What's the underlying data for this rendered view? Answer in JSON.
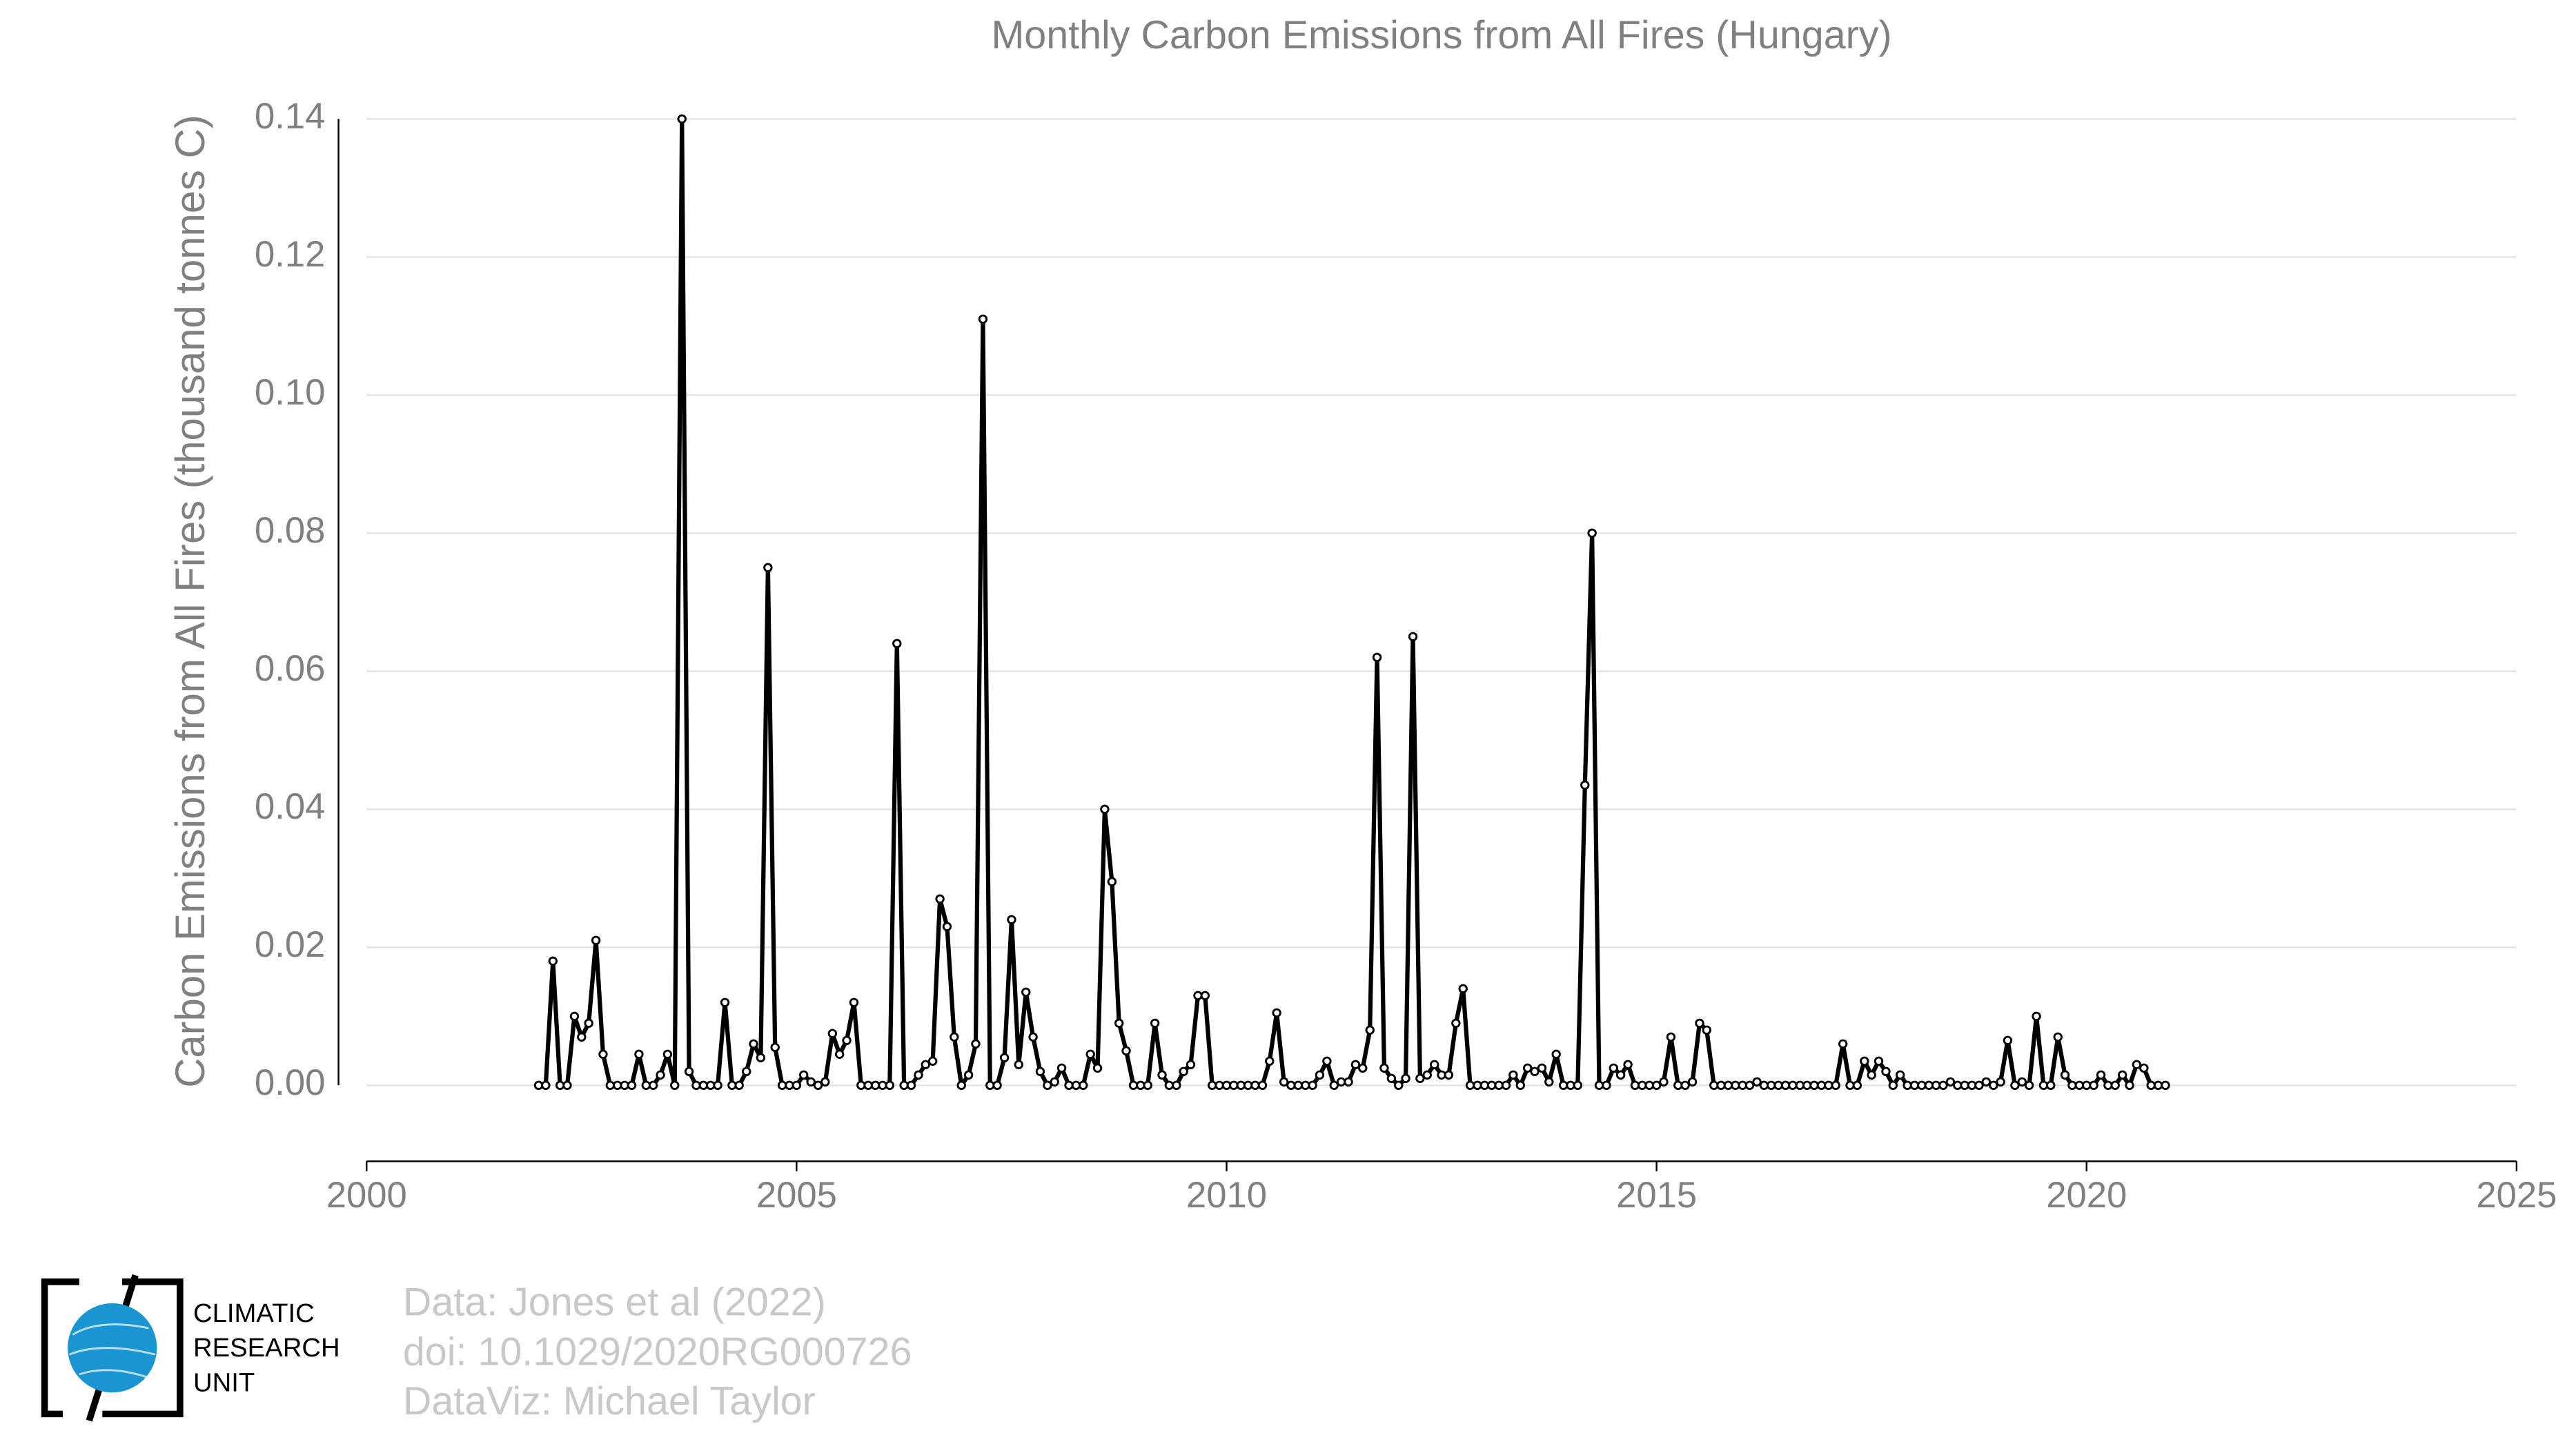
{
  "chart_data": {
    "type": "line",
    "title": "Monthly Carbon Emissions from All Fires (Hungary)",
    "y_label": "Carbon Emissions from All Fires (thousand tonnes C)",
    "source_lines": [
      "Data: Jones et al (2022)",
      "doi: 10.1029/2020RG000726",
      "DataViz: Michael Taylor"
    ],
    "logo_lines": [
      "CLIMATIC",
      "RESEARCH",
      "UNIT"
    ],
    "xlim": [
      2000,
      2025
    ],
    "xticks": [
      2000,
      2005,
      2010,
      2015,
      2020,
      2025
    ],
    "ylim": [
      -0.011,
      0.14
    ],
    "yticks": [
      {
        "value": 0,
        "label": "0.00"
      },
      {
        "value": 0.02,
        "label": "0.02"
      },
      {
        "value": 0.04,
        "label": "0.04"
      },
      {
        "value": 0.06,
        "label": "0.06"
      },
      {
        "value": 0.08,
        "label": "0.08"
      },
      {
        "value": 0.1,
        "label": "0.10"
      },
      {
        "value": 0.12,
        "label": "0.12"
      },
      {
        "value": 0.14,
        "label": "0.14"
      }
    ],
    "grid": true,
    "x": [
      2002.0,
      2002.083,
      2002.167,
      2002.25,
      2002.333,
      2002.417,
      2002.5,
      2002.583,
      2002.667,
      2002.75,
      2002.833,
      2002.917,
      2003.0,
      2003.083,
      2003.167,
      2003.25,
      2003.333,
      2003.417,
      2003.5,
      2003.583,
      2003.667,
      2003.75,
      2003.833,
      2003.917,
      2004.0,
      2004.083,
      2004.167,
      2004.25,
      2004.333,
      2004.417,
      2004.5,
      2004.583,
      2004.667,
      2004.75,
      2004.833,
      2004.917,
      2005.0,
      2005.083,
      2005.167,
      2005.25,
      2005.333,
      2005.417,
      2005.5,
      2005.583,
      2005.667,
      2005.75,
      2005.833,
      2005.917,
      2006.0,
      2006.083,
      2006.167,
      2006.25,
      2006.333,
      2006.417,
      2006.5,
      2006.583,
      2006.667,
      2006.75,
      2006.833,
      2006.917,
      2007.0,
      2007.083,
      2007.167,
      2007.25,
      2007.333,
      2007.417,
      2007.5,
      2007.583,
      2007.667,
      2007.75,
      2007.833,
      2007.917,
      2008.0,
      2008.083,
      2008.167,
      2008.25,
      2008.333,
      2008.417,
      2008.5,
      2008.583,
      2008.667,
      2008.75,
      2008.833,
      2008.917,
      2009.0,
      2009.083,
      2009.167,
      2009.25,
      2009.333,
      2009.417,
      2009.5,
      2009.583,
      2009.667,
      2009.75,
      2009.833,
      2009.917,
      2010.0,
      2010.083,
      2010.167,
      2010.25,
      2010.333,
      2010.417,
      2010.5,
      2010.583,
      2010.667,
      2010.75,
      2010.833,
      2010.917,
      2011.0,
      2011.083,
      2011.167,
      2011.25,
      2011.333,
      2011.417,
      2011.5,
      2011.583,
      2011.667,
      2011.75,
      2011.833,
      2011.917,
      2012.0,
      2012.083,
      2012.167,
      2012.25,
      2012.333,
      2012.417,
      2012.5,
      2012.583,
      2012.667,
      2012.75,
      2012.833,
      2012.917,
      2013.0,
      2013.083,
      2013.167,
      2013.25,
      2013.333,
      2013.417,
      2013.5,
      2013.583,
      2013.667,
      2013.75,
      2013.833,
      2013.917,
      2014.0,
      2014.083,
      2014.167,
      2014.25,
      2014.333,
      2014.417,
      2014.5,
      2014.583,
      2014.667,
      2014.75,
      2014.833,
      2014.917,
      2015.0,
      2015.083,
      2015.167,
      2015.25,
      2015.333,
      2015.417,
      2015.5,
      2015.583,
      2015.667,
      2015.75,
      2015.833,
      2015.917,
      2016.0,
      2016.083,
      2016.167,
      2016.25,
      2016.333,
      2016.417,
      2016.5,
      2016.583,
      2016.667,
      2016.75,
      2016.833,
      2016.917,
      2017.0,
      2017.083,
      2017.167,
      2017.25,
      2017.333,
      2017.417,
      2017.5,
      2017.583,
      2017.667,
      2017.75,
      2017.833,
      2017.917,
      2018.0,
      2018.083,
      2018.167,
      2018.25,
      2018.333,
      2018.417,
      2018.5,
      2018.583,
      2018.667,
      2018.75,
      2018.833,
      2018.917,
      2019.0,
      2019.083,
      2019.167,
      2019.25,
      2019.333,
      2019.417,
      2019.5,
      2019.583,
      2019.667,
      2019.75,
      2019.833,
      2019.917,
      2020.0,
      2020.083,
      2020.167,
      2020.25,
      2020.333,
      2020.417,
      2020.5,
      2020.583,
      2020.667,
      2020.75,
      2020.833,
      2020.917
    ],
    "series": [
      {
        "name": "Carbon Emissions",
        "color": "#000000",
        "values": [
          0,
          0,
          0.018,
          0,
          0,
          0.01,
          0.007,
          0.009,
          0.021,
          0.0045,
          0,
          0,
          0,
          0,
          0.0045,
          0,
          0,
          0.0015,
          0.0045,
          0,
          0.14,
          0.002,
          0,
          0,
          0,
          0,
          0.012,
          0,
          0,
          0.002,
          0.006,
          0.004,
          0.075,
          0.0055,
          0,
          0,
          0,
          0.0015,
          0.0005,
          0,
          0.0005,
          0.0075,
          0.0045,
          0.0065,
          0.012,
          0,
          0,
          0,
          0,
          0,
          0.064,
          0,
          0,
          0.0015,
          0.003,
          0.0035,
          0.027,
          0.023,
          0.007,
          0,
          0.0015,
          0.006,
          0.111,
          0,
          0,
          0.004,
          0.024,
          0.003,
          0.0135,
          0.007,
          0.002,
          0,
          0.0005,
          0.0025,
          0,
          0,
          0,
          0.0045,
          0.0025,
          0.04,
          0.0295,
          0.009,
          0.005,
          0,
          0,
          0,
          0.009,
          0.0015,
          0,
          0,
          0.002,
          0.003,
          0.013,
          0.013,
          0,
          0,
          0,
          0,
          0,
          0,
          0,
          0,
          0.0035,
          0.0105,
          0.0005,
          0,
          0,
          0,
          0,
          0.0015,
          0.0035,
          0,
          0.0005,
          0.0005,
          0.003,
          0.0025,
          0.008,
          0.062,
          0.0025,
          0.001,
          0,
          0.001,
          0.065,
          0.001,
          0.0015,
          0.003,
          0.0015,
          0.0015,
          0.009,
          0.014,
          0,
          0,
          0,
          0,
          0,
          0,
          0.0015,
          0,
          0.0025,
          0.002,
          0.0025,
          0.0005,
          0.0045,
          0,
          0,
          0,
          0.0435,
          0.08,
          0,
          0,
          0.0025,
          0.0015,
          0.003,
          0,
          0,
          0,
          0,
          0.0005,
          0.007,
          0,
          0,
          0.0005,
          0.009,
          0.008,
          0,
          0,
          0,
          0,
          0,
          0,
          0.0005,
          0,
          0,
          0,
          0,
          0,
          0,
          0,
          0,
          0,
          0,
          0,
          0.006,
          0,
          0,
          0.0035,
          0.0015,
          0.0035,
          0.002,
          0,
          0.0015,
          0,
          0,
          0,
          0,
          0,
          0,
          0.0005,
          0,
          0,
          0,
          0,
          0.0005,
          0,
          0.0005,
          0.0065,
          0,
          0.0005,
          0,
          0.01,
          0,
          0,
          0.007,
          0.0015,
          0,
          0,
          0,
          0,
          0.0015,
          0,
          0,
          0.0015,
          0,
          0.003,
          0.0025,
          0,
          0,
          0
        ]
      }
    ]
  }
}
